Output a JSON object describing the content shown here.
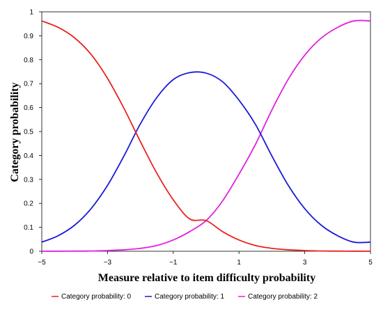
{
  "chart_data": {
    "type": "line",
    "title": "",
    "xlabel": "Measure relative to item difficulty probability",
    "ylabel": "Category probability",
    "xlim": [
      -5,
      5
    ],
    "ylim": [
      0,
      1
    ],
    "x_ticks": [
      "−5",
      "−3",
      "−1",
      "1",
      "3",
      "5"
    ],
    "y_ticks": [
      "0",
      "0.1",
      "0.2",
      "0.3",
      "0.4",
      "0.5",
      "0.6",
      "0.7",
      "0.8",
      "0.9",
      "1"
    ],
    "grid": false,
    "legend_position": "bottom",
    "x": [
      -5,
      -4.5,
      -4,
      -3.5,
      -3,
      -2.5,
      -2,
      -1.5,
      -1,
      -0.5,
      0,
      0.5,
      1,
      1.5,
      2,
      2.5,
      3,
      3.5,
      4,
      4.5,
      5
    ],
    "series": [
      {
        "name": "Category probability: 0",
        "color": "#e8231e",
        "values": [
          0.962,
          0.935,
          0.891,
          0.822,
          0.722,
          0.597,
          0.458,
          0.326,
          0.215,
          0.135,
          0.128,
          0.082,
          0.047,
          0.024,
          0.012,
          0.006,
          0.003,
          0.001,
          0.0005,
          0.0002,
          0.0001
        ]
      },
      {
        "name": "Category probability: 1",
        "color": "#1a1ad8",
        "values": [
          0.038,
          0.065,
          0.109,
          0.178,
          0.275,
          0.398,
          0.532,
          0.642,
          0.717,
          0.746,
          0.744,
          0.708,
          0.631,
          0.53,
          0.398,
          0.275,
          0.178,
          0.109,
          0.065,
          0.038,
          0.038
        ]
      },
      {
        "name": "Category probability: 2",
        "color": "#e020e0",
        "values": [
          0.0001,
          0.0002,
          0.0005,
          0.001,
          0.003,
          0.006,
          0.012,
          0.024,
          0.047,
          0.082,
          0.128,
          0.21,
          0.322,
          0.446,
          0.59,
          0.719,
          0.819,
          0.89,
          0.935,
          0.962,
          0.962
        ]
      }
    ]
  }
}
